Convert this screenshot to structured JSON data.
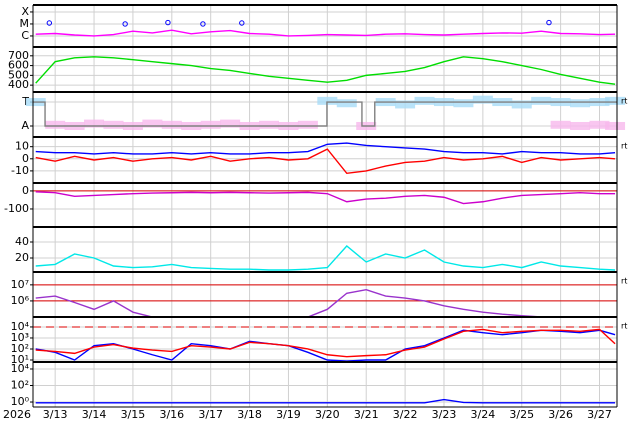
{
  "chart_data": {
    "type": "multi-panel",
    "x": [
      12.5,
      13,
      13.5,
      14,
      14.5,
      15,
      15.5,
      16,
      16.5,
      17,
      17.5,
      18,
      18.5,
      19,
      19.5,
      20,
      20.5,
      21,
      21.5,
      22,
      22.5,
      23,
      23.5,
      24,
      24.5,
      25,
      25.5,
      26,
      26.5,
      27,
      27.4
    ],
    "xlim": [
      12.43,
      27.45
    ],
    "xticks": [
      {
        "value": 13,
        "label": "3/13"
      },
      {
        "value": 14,
        "label": "3/14"
      },
      {
        "value": 15,
        "label": "3/15"
      },
      {
        "value": 16,
        "label": "3/16"
      },
      {
        "value": 17,
        "label": "3/17"
      },
      {
        "value": 18,
        "label": "3/18"
      },
      {
        "value": 19,
        "label": "3/19"
      },
      {
        "value": 20,
        "label": "3/20"
      },
      {
        "value": 21,
        "label": "3/21"
      },
      {
        "value": 22,
        "label": "3/22"
      },
      {
        "value": 23,
        "label": "3/23"
      },
      {
        "value": 24,
        "label": "3/24"
      },
      {
        "value": 25,
        "label": "3/25"
      },
      {
        "value": 26,
        "label": "3/26"
      },
      {
        "value": 27,
        "label": "3/27"
      }
    ],
    "year_label": "2026",
    "grid": true,
    "panels": [
      {
        "type": "line",
        "log": true,
        "ylim": [
          1.2e-07,
          0.00038
        ],
        "yticks": [
          {
            "value": 0.0001,
            "label": "X"
          },
          {
            "value": 1e-05,
            "label": "M"
          },
          {
            "value": 1e-06,
            "label": "C"
          }
        ],
        "series": [
          {
            "color": "#ff00ff",
            "values": [
              1.4e-06,
              1.6e-06,
              1.2e-06,
              1e-06,
              1.3e-06,
              2.5e-06,
              1.8e-06,
              3e-06,
              1.5e-06,
              2.2e-06,
              2.8e-06,
              1.6e-06,
              1.4e-06,
              1e-06,
              1.1e-06,
              1.3e-06,
              1.2e-06,
              1.1e-06,
              1.4e-06,
              1.5e-06,
              1.3e-06,
              1.2e-06,
              1.4e-06,
              1.6e-06,
              1.8e-06,
              1.7e-06,
              2.5e-06,
              1.6e-06,
              1.5e-06,
              1.3e-06,
              1.4e-06
            ]
          }
        ],
        "markers": {
          "color": "#0000ff",
          "x": [
            12.85,
            14.8,
            15.9,
            16.8,
            17.8,
            25.7
          ],
          "values": [
            1.2e-05,
            1e-05,
            1.3e-05,
            1e-05,
            1.2e-05,
            1.3e-05
          ]
        }
      },
      {
        "type": "line",
        "ylim": [
          330,
          790
        ],
        "yticks": [
          400,
          500,
          600,
          700
        ],
        "series": [
          {
            "color": "#00dd00",
            "values": [
              420,
              640,
              680,
              690,
              680,
              660,
              640,
              620,
              600,
              570,
              550,
              520,
              490,
              470,
              450,
              430,
              450,
              500,
              520,
              540,
              580,
              640,
              690,
              670,
              640,
              600,
              560,
              510,
              470,
              430,
              410
            ]
          }
        ]
      },
      {
        "type": "line",
        "ylim": [
          -0.46,
          1.42
        ],
        "yticks": [
          {
            "value": 0,
            "label": "A"
          },
          {
            "value": 1,
            "label": "T"
          }
        ],
        "side_label": "rt",
        "series": [
          {
            "color": "#a8dcf8",
            "style": "dots",
            "values": [
              1.0,
              null,
              null,
              null,
              null,
              null,
              null,
              null,
              null,
              null,
              null,
              null,
              null,
              null,
              null,
              1.05,
              0.95,
              null,
              1.0,
              0.9,
              1.05,
              1.0,
              0.95,
              1.1,
              1.0,
              0.9,
              1.05,
              1.0,
              0.95,
              1.0,
              1.05
            ]
          },
          {
            "color": "#f8b8ec",
            "style": "dots",
            "values": [
              null,
              0.05,
              0.0,
              0.1,
              0.05,
              0.0,
              0.1,
              0.05,
              0.0,
              0.05,
              0.1,
              0.0,
              0.05,
              0.0,
              0.05,
              null,
              null,
              0.0,
              null,
              null,
              null,
              null,
              null,
              null,
              null,
              null,
              null,
              0.05,
              0.0,
              0.05,
              0.0
            ]
          },
          {
            "color": "#808080",
            "style": "step",
            "x": [
              12.43,
              12.74,
              19.99,
              20.89,
              21.22,
              27.45
            ],
            "values": [
              1,
              0,
              1,
              0,
              1,
              1
            ]
          }
        ]
      },
      {
        "type": "line",
        "ylim": [
          -20,
          18
        ],
        "yticks": [
          -10,
          0,
          10
        ],
        "side_label": "rt",
        "series": [
          {
            "color": "#0000ff",
            "values": [
              6,
              5,
              5,
              4,
              5,
              4,
              4,
              5,
              4,
              5,
              4,
              4,
              5,
              5,
              6,
              12,
              13,
              11,
              10,
              9,
              8,
              6,
              5,
              5,
              4,
              6,
              5,
              5,
              4,
              4,
              5
            ]
          },
          {
            "color": "#ff0000",
            "values": [
              1,
              -2,
              2,
              -1,
              1,
              -2,
              0,
              1,
              -1,
              2,
              -2,
              0,
              1,
              -1,
              0,
              8,
              -12,
              -10,
              -6,
              -3,
              -2,
              1,
              -1,
              0,
              2,
              -3,
              1,
              -1,
              0,
              1,
              0
            ]
          }
        ]
      },
      {
        "type": "line",
        "ylim": [
          -200,
          44
        ],
        "yticks": [
          -100,
          0
        ],
        "reflines": [
          0
        ],
        "series": [
          {
            "color": "#cc00cc",
            "values": [
              -5,
              -10,
              -30,
              -25,
              -20,
              -15,
              -12,
              -10,
              -8,
              -10,
              -8,
              -10,
              -12,
              -10,
              -8,
              -15,
              -60,
              -45,
              -40,
              -30,
              -25,
              -35,
              -70,
              -60,
              -40,
              -25,
              -20,
              -15,
              -10,
              -15,
              -15
            ]
          }
        ]
      },
      {
        "type": "line",
        "ylim": [
          2.5,
          58.75
        ],
        "yticks": [
          20,
          40
        ],
        "series": [
          {
            "color": "#00e8e8",
            "values": [
              10,
              12,
              25,
              20,
              10,
              8,
              9,
              12,
              8,
              7,
              6,
              6,
              5,
              5,
              6,
              8,
              35,
              15,
              25,
              20,
              30,
              15,
              10,
              8,
              12,
              8,
              15,
              10,
              8,
              6,
              5
            ]
          }
        ]
      },
      {
        "type": "line",
        "log": true,
        "ylim": [
          100000,
          63000000
        ],
        "yticks": [
          {
            "value": 1000000,
            "label": "10⁶"
          },
          {
            "value": 10000000,
            "label": "10⁷"
          }
        ],
        "side_label": "rt",
        "reflines": [
          1000000,
          10000000
        ],
        "series": [
          {
            "color": "#9933cc",
            "values": [
              1500000,
              2000000,
              800000,
              300000,
              1000000,
              200000,
              100000,
              100000,
              100000,
              100000,
              100000,
              100000,
              100000,
              100000,
              100000,
              300000,
              3000000,
              5000000,
              2000000,
              1500000,
              1000000,
              500000,
              300000,
              200000,
              150000,
              120000,
              100000,
              100000,
              100000,
              100000,
              100000
            ]
          }
        ]
      },
      {
        "type": "line",
        "log": true,
        "ylim": [
          6.6,
          80000
        ],
        "yticks": [
          {
            "value": 10,
            "label": "10¹"
          },
          {
            "value": 100,
            "label": "10²"
          },
          {
            "value": 1000,
            "label": "10³"
          },
          {
            "value": 10000,
            "label": "10⁴"
          }
        ],
        "side_label": "rt",
        "dashed_reflines": [
          10000
        ],
        "series": [
          {
            "color": "#0000ff",
            "values": [
              100,
              50,
              10,
              200,
              300,
              100,
              30,
              10,
              300,
              200,
              100,
              500,
              300,
              200,
              50,
              10,
              8,
              10,
              10,
              100,
              200,
              1000,
              5000,
              3000,
              2000,
              3000,
              5000,
              4000,
              3000,
              5000,
              2000
            ]
          },
          {
            "color": "#ff0000",
            "values": [
              80,
              60,
              40,
              150,
              250,
              120,
              80,
              60,
              200,
              150,
              100,
              400,
              300,
              200,
              100,
              30,
              20,
              25,
              30,
              80,
              150,
              800,
              4000,
              6000,
              3000,
              4000,
              5000,
              5000,
              4000,
              6000,
              300
            ]
          }
        ]
      },
      {
        "type": "line",
        "log": true,
        "ylim": [
          0.25,
          70000
        ],
        "yticks": [
          {
            "value": 1,
            "label": "10⁰"
          },
          {
            "value": 100,
            "label": "10²"
          },
          {
            "value": 10000,
            "label": "10⁴"
          }
        ],
        "series": [
          {
            "color": "#0000ff",
            "values": [
              0.8,
              0.8,
              0.8,
              0.8,
              0.8,
              0.8,
              0.8,
              0.8,
              0.8,
              0.8,
              0.8,
              0.8,
              0.8,
              0.8,
              0.8,
              0.8,
              0.8,
              0.8,
              0.8,
              0.8,
              0.8,
              2,
              0.9,
              0.8,
              0.8,
              0.8,
              0.8,
              0.8,
              0.8,
              0.8,
              0.8
            ]
          }
        ]
      }
    ]
  }
}
